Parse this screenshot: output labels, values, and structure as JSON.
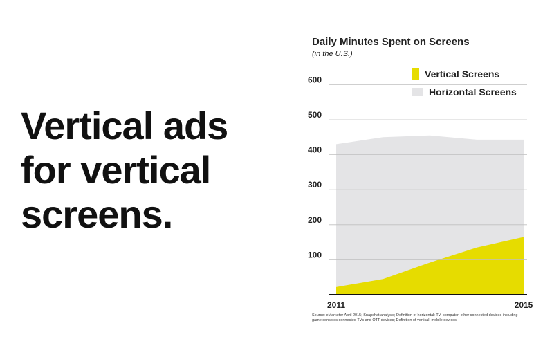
{
  "headline": {
    "line1": "Vertical ads",
    "line2": "for vertical",
    "line3": "screens."
  },
  "chart_data": {
    "type": "area",
    "title": "Daily Minutes Spent on Screens",
    "subtitle": "(in the U.S.)",
    "xlabel": "",
    "ylabel": "",
    "x": [
      2011,
      2012,
      2013,
      2014,
      2015
    ],
    "x_tick_labels": [
      "2011",
      "2015"
    ],
    "y_ticks": [
      100,
      200,
      300,
      400,
      500,
      600
    ],
    "ylim": [
      0,
      600
    ],
    "grid": true,
    "legend_position": "top-right",
    "series": [
      {
        "name": "Horizontal Screens",
        "color": "#e4e4e6",
        "values": [
          430,
          450,
          455,
          443,
          443
        ]
      },
      {
        "name": "Vertical Screens",
        "color": "#e6dc00",
        "values": [
          22,
          45,
          92,
          135,
          165
        ]
      }
    ],
    "source": "Source: eMarketer April 2015; Snapchat analysis; Definition of horizontal: TV, computer, other connected devices including game consoles connected TVs and OTT devices; Definition of vertical: mobile devices"
  }
}
